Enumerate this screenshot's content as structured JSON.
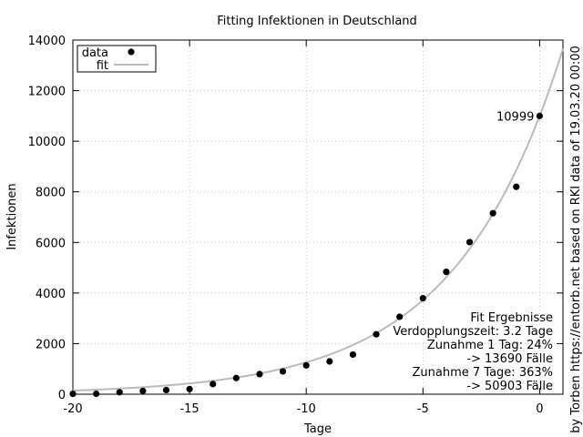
{
  "chart_data": {
    "type": "scatter",
    "title": "Fitting Infektionen in Deutschland",
    "xlabel": "Tage",
    "ylabel": "Infektionen",
    "side_label": "by Torben https://entorb.net based on RKI data of 19.03.20 00:00",
    "xlim": [
      -20,
      1
    ],
    "ylim": [
      0,
      14000
    ],
    "x_ticks": [
      -20,
      -15,
      -10,
      -5,
      0
    ],
    "y_ticks": [
      0,
      2000,
      4000,
      6000,
      8000,
      10000,
      12000,
      14000
    ],
    "grid": true,
    "legend_position": "top-left",
    "series": [
      {
        "name": "data",
        "type": "scatter",
        "color": "#000000",
        "x": [
          -20,
          -19,
          -18,
          -17,
          -16,
          -15,
          -14,
          -13,
          -12,
          -11,
          -10,
          -9,
          -8,
          -7,
          -6,
          -5,
          -4,
          -3,
          -2,
          -1,
          0
        ],
        "y": [
          16,
          18,
          79,
          130,
          165,
          203,
          400,
          639,
          795,
          902,
          1139,
          1296,
          1567,
          2369,
          3062,
          3795,
          4838,
          6012,
          7156,
          8198,
          10999
        ]
      },
      {
        "name": "fit",
        "type": "line",
        "color": "#bbbbbb",
        "fit": {
          "a": 10999,
          "doubling_days": 3.2,
          "x_range": [
            -20,
            1
          ]
        }
      }
    ],
    "point_label": {
      "x": 0,
      "y": 10999,
      "text": "10999"
    },
    "fit_box": [
      "Fit Ergebnisse",
      "Verdopplungszeit: 3.2 Tage",
      "Zunahme 1 Tag: 24%",
      "-> 13690 Fälle",
      "Zunahme 7 Tage: 363%",
      "-> 50903 Fälle"
    ]
  }
}
